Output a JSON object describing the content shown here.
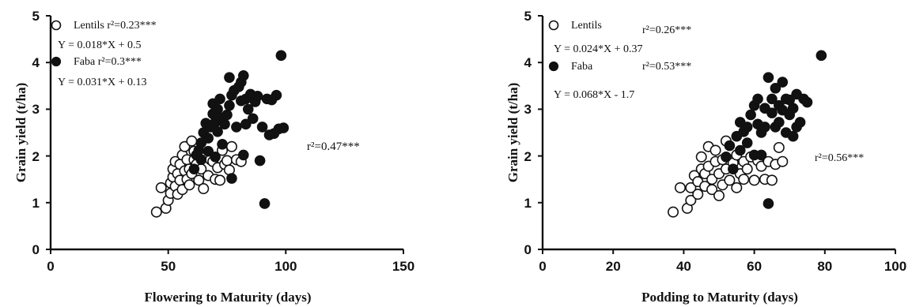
{
  "chart_data": [
    {
      "type": "scatter",
      "title": "",
      "xlabel": "Flowering to Maturity (days)",
      "ylabel": "Grain yield (t/ha)",
      "xlim": [
        0,
        150
      ],
      "ylim": [
        0,
        5
      ],
      "xticks": [
        "0",
        "50",
        "100",
        "150"
      ],
      "yticks": [
        "0",
        "1",
        "2",
        "3",
        "4",
        "5"
      ],
      "series": [
        {
          "name": "Lentils",
          "marker": "open-circle",
          "color": "#111111",
          "points": [
            [
              45,
              0.8
            ],
            [
              47,
              1.32
            ],
            [
              49,
              0.88
            ],
            [
              50,
              1.05
            ],
            [
              51,
              1.2
            ],
            [
              51,
              1.42
            ],
            [
              52,
              1.55
            ],
            [
              52,
              1.72
            ],
            [
              53,
              1.35
            ],
            [
              53,
              1.88
            ],
            [
              54,
              1.62
            ],
            [
              54,
              1.18
            ],
            [
              55,
              1.48
            ],
            [
              55,
              1.82
            ],
            [
              56,
              2.02
            ],
            [
              56,
              1.28
            ],
            [
              57,
              1.68
            ],
            [
              57,
              2.2
            ],
            [
              58,
              1.5
            ],
            [
              58,
              1.92
            ],
            [
              59,
              1.38
            ],
            [
              59,
              1.72
            ],
            [
              60,
              2.32
            ],
            [
              60,
              1.62
            ],
            [
              61,
              1.92
            ],
            [
              61,
              2.1
            ],
            [
              62,
              1.82
            ],
            [
              63,
              1.48
            ],
            [
              64,
              1.72
            ],
            [
              65,
              1.3
            ],
            [
              66,
              2.02
            ],
            [
              67,
              1.58
            ],
            [
              68,
              1.92
            ],
            [
              69,
              1.88
            ],
            [
              70,
              1.5
            ],
            [
              71,
              1.75
            ],
            [
              72,
              1.48
            ],
            [
              73,
              2.12
            ],
            [
              74,
              1.82
            ],
            [
              75,
              1.9
            ],
            [
              76,
              1.7
            ],
            [
              77,
              2.2
            ],
            [
              79,
              1.92
            ],
            [
              81,
              1.88
            ]
          ]
        },
        {
          "name": "Faba",
          "marker": "filled-circle",
          "color": "#111111",
          "points": [
            [
              61,
              1.72
            ],
            [
              62,
              2.02
            ],
            [
              63,
              2.12
            ],
            [
              64,
              1.92
            ],
            [
              64,
              2.28
            ],
            [
              65,
              2.5
            ],
            [
              66,
              2.7
            ],
            [
              67,
              2.1
            ],
            [
              67,
              2.38
            ],
            [
              68,
              2.62
            ],
            [
              69,
              2.9
            ],
            [
              69,
              3.12
            ],
            [
              70,
              1.98
            ],
            [
              70,
              2.72
            ],
            [
              71,
              2.52
            ],
            [
              71,
              3.0
            ],
            [
              72,
              2.82
            ],
            [
              72,
              3.22
            ],
            [
              73,
              2.25
            ],
            [
              74,
              2.68
            ],
            [
              75,
              2.88
            ],
            [
              76,
              3.08
            ],
            [
              76,
              3.68
            ],
            [
              77,
              1.52
            ],
            [
              77,
              3.3
            ],
            [
              78,
              3.4
            ],
            [
              79,
              2.62
            ],
            [
              80,
              3.48
            ],
            [
              81,
              3.18
            ],
            [
              81,
              3.58
            ],
            [
              82,
              2.02
            ],
            [
              82,
              3.72
            ],
            [
              83,
              2.68
            ],
            [
              83,
              3.22
            ],
            [
              84,
              3.0
            ],
            [
              85,
              3.32
            ],
            [
              86,
              2.8
            ],
            [
              87,
              3.16
            ],
            [
              88,
              3.28
            ],
            [
              89,
              1.9
            ],
            [
              90,
              2.62
            ],
            [
              91,
              0.98
            ],
            [
              92,
              3.22
            ],
            [
              93,
              2.45
            ],
            [
              94,
              3.2
            ],
            [
              95,
              2.48
            ],
            [
              96,
              3.3
            ],
            [
              97,
              2.58
            ],
            [
              98,
              4.15
            ],
            [
              99,
              2.6
            ]
          ]
        }
      ],
      "annotations": [
        {
          "text": "Lentils  r²=0.23***"
        },
        {
          "text": "Y = 0.018*X + 0.5"
        },
        {
          "text": "Faba  r²=0.3***"
        },
        {
          "text": "Y = 0.031*X + 0.13"
        },
        {
          "text": "r²=0.47***"
        }
      ]
    },
    {
      "type": "scatter",
      "title": "",
      "xlabel": "Podding to Maturity (days)",
      "ylabel": "Grain yield (t/ha)",
      "xlim": [
        0,
        100
      ],
      "ylim": [
        0,
        5
      ],
      "xticks": [
        "0",
        "20",
        "40",
        "60",
        "80",
        "100"
      ],
      "yticks": [
        "0",
        "1",
        "2",
        "3",
        "4",
        "5"
      ],
      "series": [
        {
          "name": "Lentils",
          "marker": "open-circle",
          "color": "#111111",
          "points": [
            [
              37,
              0.8
            ],
            [
              39,
              1.32
            ],
            [
              41,
              0.88
            ],
            [
              42,
              1.05
            ],
            [
              42,
              1.32
            ],
            [
              43,
              1.58
            ],
            [
              44,
              1.18
            ],
            [
              44,
              1.45
            ],
            [
              45,
              1.72
            ],
            [
              45,
              1.98
            ],
            [
              46,
              1.35
            ],
            [
              46,
              1.62
            ],
            [
              47,
              2.2
            ],
            [
              47,
              1.78
            ],
            [
              48,
              1.28
            ],
            [
              48,
              1.5
            ],
            [
              49,
              1.88
            ],
            [
              49,
              2.12
            ],
            [
              50,
              1.15
            ],
            [
              50,
              1.62
            ],
            [
              51,
              1.38
            ],
            [
              51,
              1.92
            ],
            [
              52,
              2.32
            ],
            [
              52,
              1.72
            ],
            [
              53,
              1.48
            ],
            [
              54,
              1.85
            ],
            [
              55,
              1.32
            ],
            [
              55,
              2.02
            ],
            [
              56,
              1.62
            ],
            [
              57,
              1.5
            ],
            [
              57,
              1.88
            ],
            [
              58,
              1.72
            ],
            [
              59,
              1.98
            ],
            [
              60,
              1.48
            ],
            [
              61,
              1.9
            ],
            [
              62,
              1.78
            ],
            [
              63,
              1.5
            ],
            [
              64,
              1.88
            ],
            [
              65,
              1.48
            ],
            [
              66,
              1.82
            ],
            [
              67,
              2.18
            ],
            [
              68,
              1.88
            ]
          ]
        },
        {
          "name": "Faba",
          "marker": "filled-circle",
          "color": "#111111",
          "points": [
            [
              52,
              1.98
            ],
            [
              53,
              2.22
            ],
            [
              54,
              1.72
            ],
            [
              55,
              2.42
            ],
            [
              56,
              2.72
            ],
            [
              56,
              2.12
            ],
            [
              57,
              2.52
            ],
            [
              58,
              2.62
            ],
            [
              58,
              2.28
            ],
            [
              59,
              2.88
            ],
            [
              60,
              3.08
            ],
            [
              60,
              2.02
            ],
            [
              61,
              2.68
            ],
            [
              61,
              3.22
            ],
            [
              62,
              2.5
            ],
            [
              62,
              2.02
            ],
            [
              63,
              3.02
            ],
            [
              63,
              2.62
            ],
            [
              64,
              3.68
            ],
            [
              64,
              0.98
            ],
            [
              65,
              2.92
            ],
            [
              65,
              3.22
            ],
            [
              66,
              2.62
            ],
            [
              66,
              3.45
            ],
            [
              67,
              3.08
            ],
            [
              67,
              2.72
            ],
            [
              68,
              3.58
            ],
            [
              68,
              2.98
            ],
            [
              69,
              3.22
            ],
            [
              69,
              2.5
            ],
            [
              70,
              3.2
            ],
            [
              70,
              2.88
            ],
            [
              71,
              2.42
            ],
            [
              71,
              3.02
            ],
            [
              72,
              2.62
            ],
            [
              72,
              3.32
            ],
            [
              73,
              2.72
            ],
            [
              74,
              3.22
            ],
            [
              75,
              3.15
            ],
            [
              79,
              4.15
            ]
          ]
        }
      ],
      "annotations": [
        {
          "text": "Lentils"
        },
        {
          "text": "r²=0.26***"
        },
        {
          "text": "Y = 0.024*X + 0.37"
        },
        {
          "text": "Faba"
        },
        {
          "text": "r²=0.53***"
        },
        {
          "text": "Y = 0.068*X - 1.7"
        },
        {
          "text": "r²=0.56***"
        }
      ]
    }
  ]
}
